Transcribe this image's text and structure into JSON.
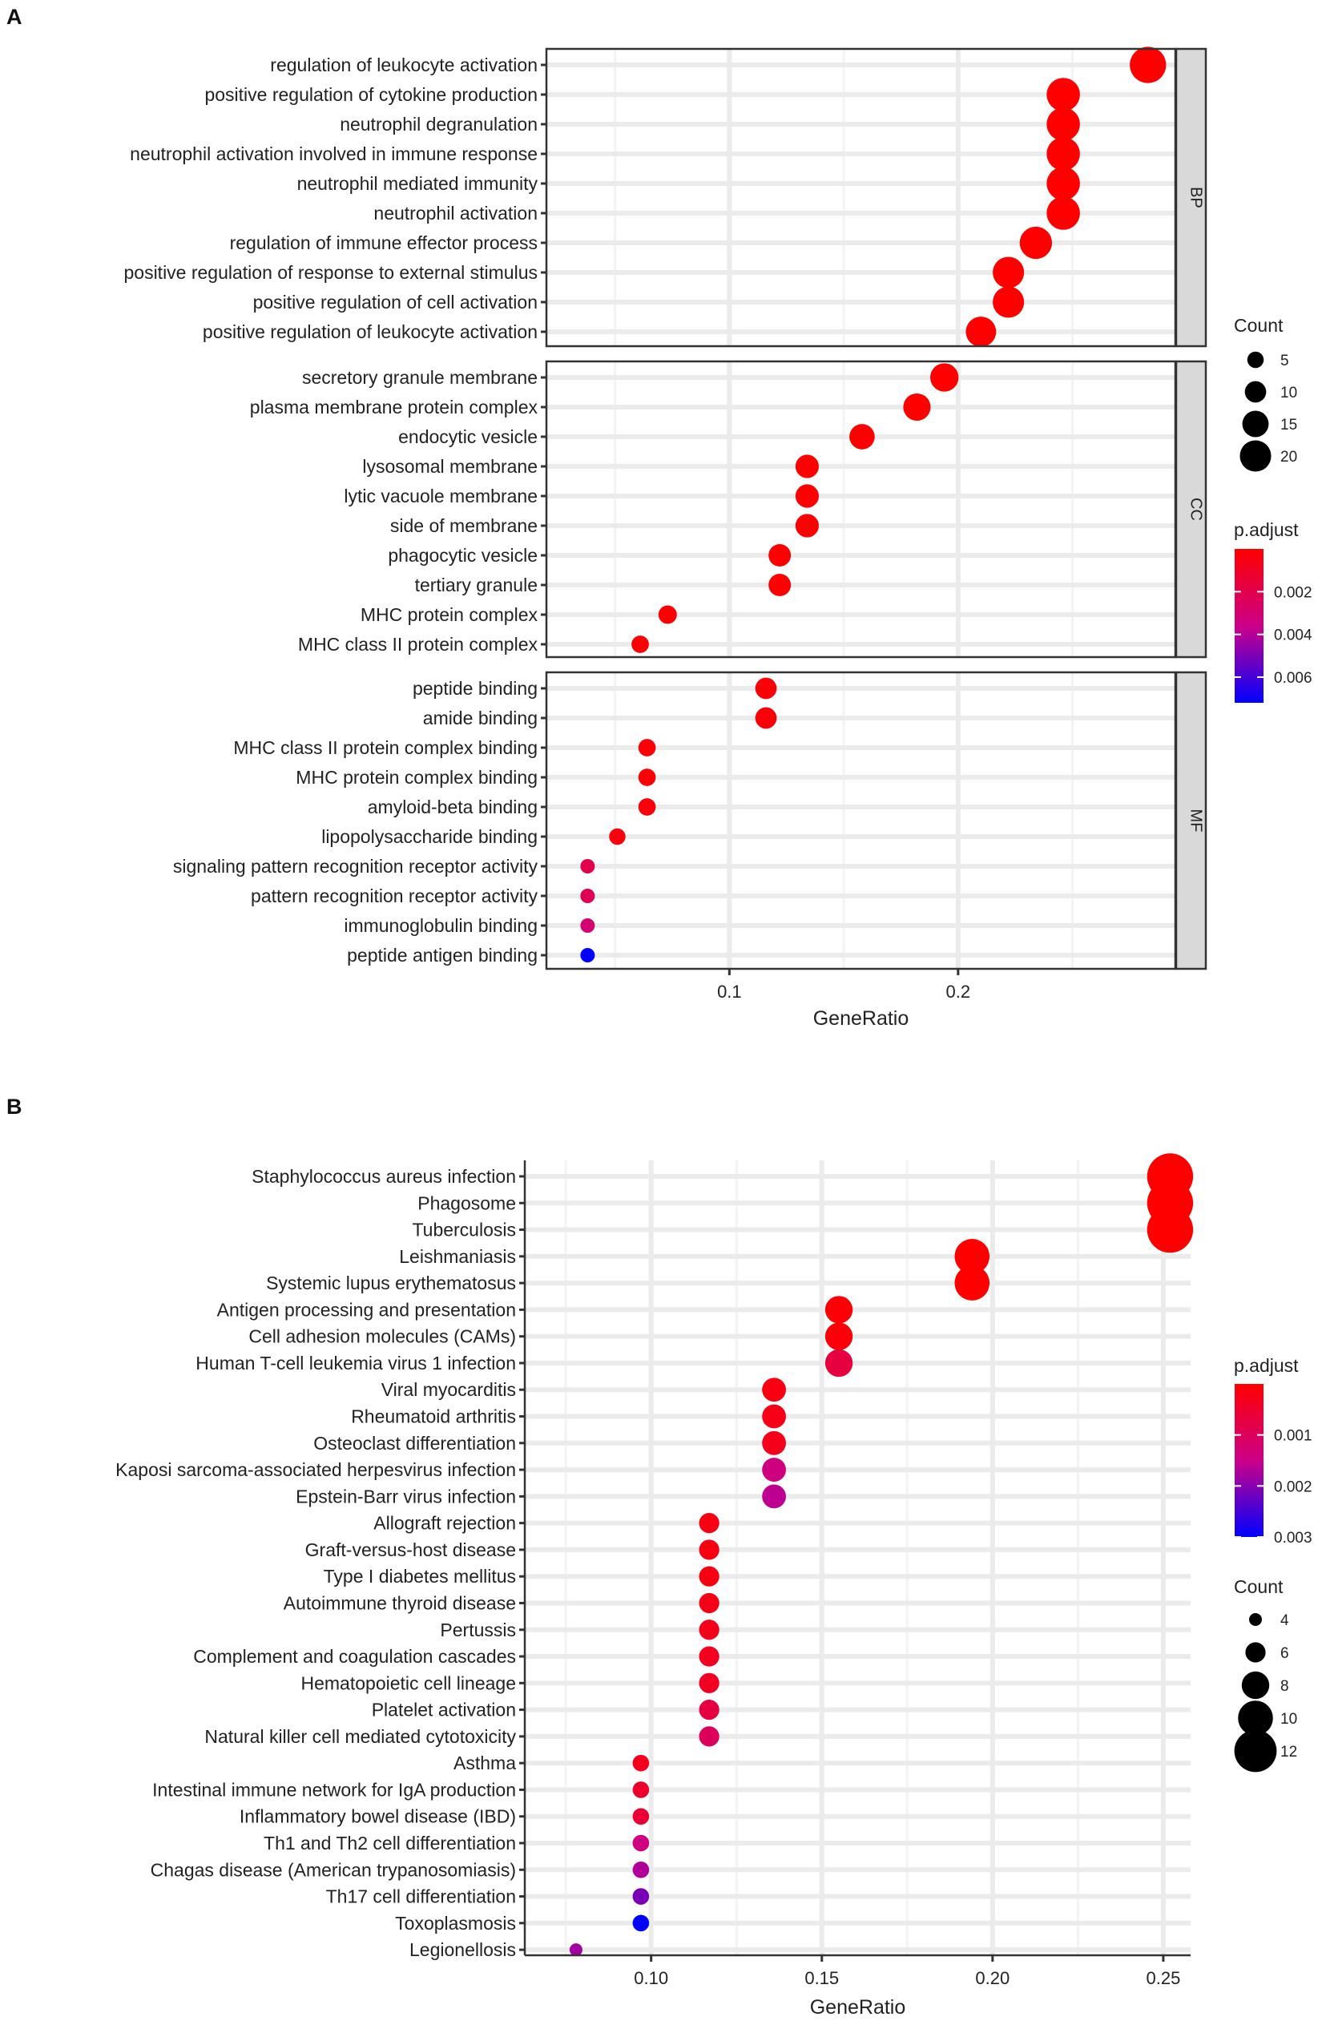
{
  "panels": {
    "a": {
      "label": "A"
    },
    "b": {
      "label": "B"
    }
  },
  "chart_data": [
    {
      "id": "a",
      "type": "scatter",
      "subtype": "dotplot",
      "title": "",
      "xlabel": "GeneRatio",
      "ylabel": "",
      "xlim": [
        0.02,
        0.295
      ],
      "xticks": [
        0.1,
        0.2
      ],
      "xtick_labels": [
        "0.1",
        "0.2"
      ],
      "grid": true,
      "facets": [
        {
          "name": "BP",
          "terms": [
            {
              "label": "regulation of leukocyte activation",
              "ratio": 0.283,
              "count": 25,
              "padj": 0.0
            },
            {
              "label": "positive regulation of cytokine production",
              "ratio": 0.246,
              "count": 22,
              "padj": 0.0
            },
            {
              "label": "neutrophil degranulation",
              "ratio": 0.246,
              "count": 22,
              "padj": 0.0
            },
            {
              "label": "neutrophil activation involved in immune response",
              "ratio": 0.246,
              "count": 22,
              "padj": 0.0
            },
            {
              "label": "neutrophil mediated immunity",
              "ratio": 0.246,
              "count": 22,
              "padj": 0.0
            },
            {
              "label": "neutrophil activation",
              "ratio": 0.246,
              "count": 22,
              "padj": 0.0
            },
            {
              "label": "regulation of immune effector process",
              "ratio": 0.234,
              "count": 21,
              "padj": 0.0
            },
            {
              "label": "positive regulation of response to external stimulus",
              "ratio": 0.222,
              "count": 20,
              "padj": 0.0
            },
            {
              "label": "positive regulation of cell activation",
              "ratio": 0.222,
              "count": 20,
              "padj": 0.0
            },
            {
              "label": "positive regulation of leukocyte activation",
              "ratio": 0.21,
              "count": 19,
              "padj": 0.0
            }
          ]
        },
        {
          "name": "CC",
          "terms": [
            {
              "label": "secretory granule membrane",
              "ratio": 0.194,
              "count": 17,
              "padj": 0.0
            },
            {
              "label": "plasma membrane protein complex",
              "ratio": 0.182,
              "count": 16,
              "padj": 0.0
            },
            {
              "label": "endocytic vesicle",
              "ratio": 0.158,
              "count": 14,
              "padj": 0.0
            },
            {
              "label": "lysosomal membrane",
              "ratio": 0.134,
              "count": 12,
              "padj": 0.0
            },
            {
              "label": "lytic vacuole membrane",
              "ratio": 0.134,
              "count": 12,
              "padj": 0.0
            },
            {
              "label": "side of membrane",
              "ratio": 0.134,
              "count": 12,
              "padj": 0.0
            },
            {
              "label": "phagocytic vesicle",
              "ratio": 0.122,
              "count": 11,
              "padj": 0.0
            },
            {
              "label": "tertiary granule",
              "ratio": 0.122,
              "count": 11,
              "padj": 0.0
            },
            {
              "label": "MHC protein complex",
              "ratio": 0.073,
              "count": 7,
              "padj": 0.0001
            },
            {
              "label": "MHC class II protein complex",
              "ratio": 0.061,
              "count": 6,
              "padj": 0.0001
            }
          ]
        },
        {
          "name": "MF",
          "terms": [
            {
              "label": "peptide binding",
              "ratio": 0.116,
              "count": 10,
              "padj": 0.0002
            },
            {
              "label": "amide binding",
              "ratio": 0.116,
              "count": 10,
              "padj": 0.0002
            },
            {
              "label": "MHC class II protein complex binding",
              "ratio": 0.064,
              "count": 6,
              "padj": 0.0002
            },
            {
              "label": "MHC protein complex binding",
              "ratio": 0.064,
              "count": 6,
              "padj": 0.0002
            },
            {
              "label": "amyloid-beta binding",
              "ratio": 0.064,
              "count": 6,
              "padj": 0.0003
            },
            {
              "label": "lipopolysaccharide binding",
              "ratio": 0.051,
              "count": 5,
              "padj": 0.0004
            },
            {
              "label": "signaling pattern recognition receptor activity",
              "ratio": 0.038,
              "count": 3,
              "padj": 0.002
            },
            {
              "label": "pattern recognition receptor activity",
              "ratio": 0.038,
              "count": 3,
              "padj": 0.0022
            },
            {
              "label": "immunoglobulin binding",
              "ratio": 0.038,
              "count": 3,
              "padj": 0.003
            },
            {
              "label": "peptide antigen binding",
              "ratio": 0.038,
              "count": 3,
              "padj": 0.0072
            }
          ]
        }
      ],
      "legend": {
        "placement": "right",
        "count": {
          "title": "Count",
          "values": [
            5,
            10,
            15,
            20
          ],
          "labels": [
            "5",
            "10",
            "15",
            "20"
          ]
        },
        "padj": {
          "title": "p.adjust",
          "min": 0.0,
          "max": 0.0072,
          "ticks": [
            0.002,
            0.004,
            0.006
          ],
          "tick_labels": [
            "0.002",
            "0.004",
            "0.006"
          ]
        }
      },
      "colors": {
        "low": "#ff0000",
        "mid": "#cc0088",
        "high": "#0000ff"
      }
    },
    {
      "id": "b",
      "type": "scatter",
      "subtype": "dotplot",
      "title": "",
      "xlabel": "GeneRatio",
      "ylabel": "",
      "xlim": [
        0.063,
        0.258
      ],
      "xticks": [
        0.1,
        0.15,
        0.2,
        0.25
      ],
      "xtick_labels": [
        "0.10",
        "0.15",
        "0.20",
        "0.25"
      ],
      "grid": true,
      "terms": [
        {
          "label": "Staphylococcus aureus infection",
          "ratio": 0.252,
          "count": 13,
          "padj": 0.0
        },
        {
          "label": "Phagosome",
          "ratio": 0.252,
          "count": 13,
          "padj": 0.0
        },
        {
          "label": "Tuberculosis",
          "ratio": 0.252,
          "count": 13,
          "padj": 0.0
        },
        {
          "label": "Leishmaniasis",
          "ratio": 0.194,
          "count": 10,
          "padj": 0.0
        },
        {
          "label": "Systemic lupus erythematosus",
          "ratio": 0.194,
          "count": 10,
          "padj": 0.0
        },
        {
          "label": "Antigen processing and presentation",
          "ratio": 0.155,
          "count": 8,
          "padj": 5e-05
        },
        {
          "label": "Cell adhesion molecules (CAMs)",
          "ratio": 0.155,
          "count": 8,
          "padj": 0.0001
        },
        {
          "label": "Human T-cell leukemia virus 1 infection",
          "ratio": 0.155,
          "count": 8,
          "padj": 0.0007
        },
        {
          "label": "Viral myocarditis",
          "ratio": 0.136,
          "count": 7,
          "padj": 0.0002
        },
        {
          "label": "Rheumatoid arthritis",
          "ratio": 0.136,
          "count": 7,
          "padj": 0.00025
        },
        {
          "label": "Osteoclast differentiation",
          "ratio": 0.136,
          "count": 7,
          "padj": 0.0003
        },
        {
          "label": "Kaposi sarcoma-associated herpesvirus infection",
          "ratio": 0.136,
          "count": 7,
          "padj": 0.0014
        },
        {
          "label": "Epstein-Barr virus infection",
          "ratio": 0.136,
          "count": 7,
          "padj": 0.0016
        },
        {
          "label": "Allograft rejection",
          "ratio": 0.117,
          "count": 6,
          "padj": 0.0002
        },
        {
          "label": "Graft-versus-host disease",
          "ratio": 0.117,
          "count": 6,
          "padj": 0.0002
        },
        {
          "label": "Type I diabetes mellitus",
          "ratio": 0.117,
          "count": 6,
          "padj": 0.0002
        },
        {
          "label": "Autoimmune thyroid disease",
          "ratio": 0.117,
          "count": 6,
          "padj": 0.00025
        },
        {
          "label": "Pertussis",
          "ratio": 0.117,
          "count": 6,
          "padj": 0.0003
        },
        {
          "label": "Complement and coagulation cascades",
          "ratio": 0.117,
          "count": 6,
          "padj": 0.00035
        },
        {
          "label": "Hematopoietic cell lineage",
          "ratio": 0.117,
          "count": 6,
          "padj": 0.0004
        },
        {
          "label": "Platelet activation",
          "ratio": 0.117,
          "count": 6,
          "padj": 0.0007
        },
        {
          "label": "Natural killer cell mediated cytotoxicity",
          "ratio": 0.117,
          "count": 6,
          "padj": 0.001
        },
        {
          "label": "Asthma",
          "ratio": 0.097,
          "count": 5,
          "padj": 0.0003
        },
        {
          "label": "Intestinal immune network for IgA production",
          "ratio": 0.097,
          "count": 5,
          "padj": 0.0005
        },
        {
          "label": "Inflammatory bowel disease (IBD)",
          "ratio": 0.097,
          "count": 5,
          "padj": 0.0006
        },
        {
          "label": "Th1 and Th2 cell differentiation",
          "ratio": 0.097,
          "count": 5,
          "padj": 0.0014
        },
        {
          "label": "Chagas disease (American trypanosomiasis)",
          "ratio": 0.097,
          "count": 5,
          "padj": 0.0017
        },
        {
          "label": "Th17 cell differentiation",
          "ratio": 0.097,
          "count": 5,
          "padj": 0.0021
        },
        {
          "label": "Toxoplasmosis",
          "ratio": 0.097,
          "count": 5,
          "padj": 0.003
        },
        {
          "label": "Legionellosis",
          "ratio": 0.078,
          "count": 4,
          "padj": 0.0018
        }
      ],
      "legend": {
        "placement": "right",
        "padj": {
          "title": "p.adjust",
          "min": 0.0,
          "max": 0.003,
          "ticks": [
            0.001,
            0.002,
            0.003
          ],
          "tick_labels": [
            "0.001",
            "0.002",
            "0.003"
          ]
        },
        "count": {
          "title": "Count",
          "values": [
            4,
            6,
            8,
            10,
            12
          ],
          "labels": [
            "4",
            "6",
            "8",
            "10",
            "12"
          ]
        }
      },
      "colors": {
        "low": "#ff0000",
        "mid": "#cc0088",
        "high": "#0000ff"
      }
    }
  ]
}
